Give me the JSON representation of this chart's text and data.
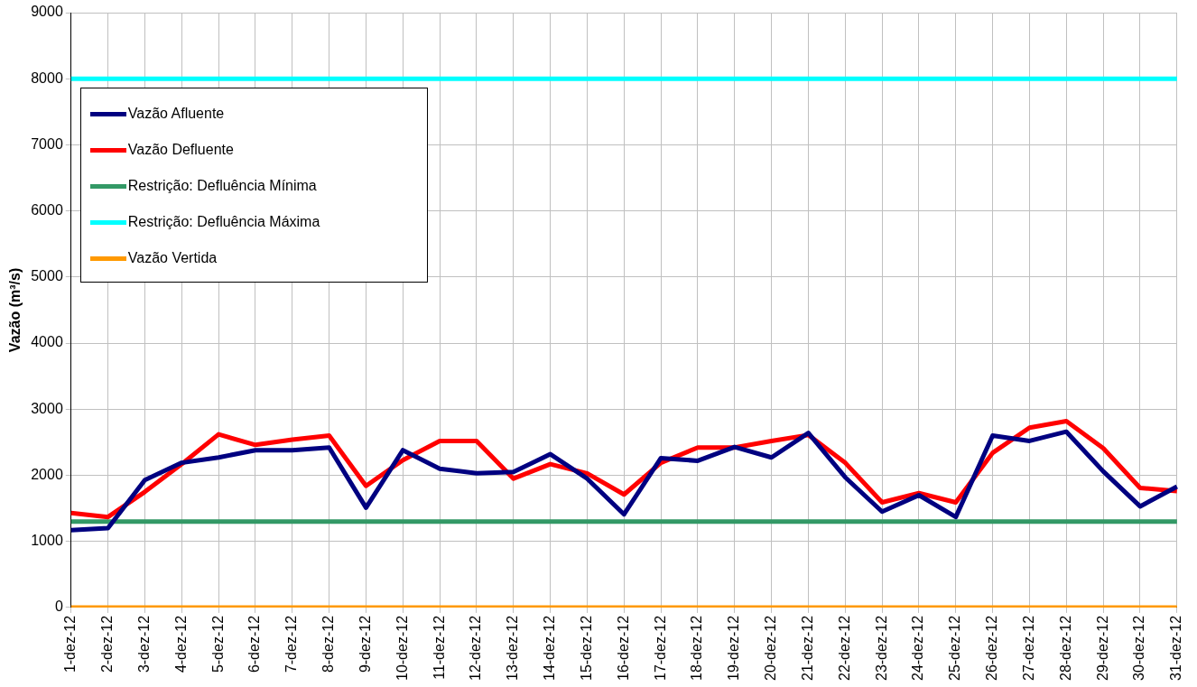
{
  "chart_data": {
    "type": "line",
    "ylabel": "Vazão (m³/s)",
    "categories": [
      "1-dez-12",
      "2-dez-12",
      "3-dez-12",
      "4-dez-12",
      "5-dez-12",
      "6-dez-12",
      "7-dez-12",
      "8-dez-12",
      "9-dez-12",
      "10-dez-12",
      "11-dez-12",
      "12-dez-12",
      "13-dez-12",
      "14-dez-12",
      "15-dez-12",
      "16-dez-12",
      "17-dez-12",
      "18-dez-12",
      "19-dez-12",
      "20-dez-12",
      "21-dez-12",
      "22-dez-12",
      "23-dez-12",
      "24-dez-12",
      "25-dez-12",
      "26-dez-12",
      "27-dez-12",
      "28-dez-12",
      "29-dez-12",
      "30-dez-12",
      "31-dez-12"
    ],
    "series": [
      {
        "name": "Vazão Afluente",
        "color": "#000080",
        "values": [
          1170,
          1200,
          1930,
          2190,
          2270,
          2380,
          2380,
          2420,
          1510,
          2380,
          2100,
          2030,
          2050,
          2320,
          1950,
          1410,
          2260,
          2220,
          2430,
          2270,
          2640,
          1970,
          1450,
          1700,
          1370,
          2600,
          2520,
          2660,
          2060,
          1530,
          1830
        ]
      },
      {
        "name": "Vazão Defluente",
        "color": "#ff0000",
        "values": [
          1430,
          1370,
          1750,
          2170,
          2620,
          2460,
          2540,
          2600,
          1840,
          2230,
          2520,
          2520,
          1950,
          2170,
          2030,
          1710,
          2190,
          2420,
          2420,
          2520,
          2610,
          2190,
          1590,
          1730,
          1590,
          2340,
          2720,
          2820,
          2410,
          1810,
          1760
        ]
      },
      {
        "name": "Restrição: Defluência Mínima",
        "color": "#339966",
        "values": [
          1300,
          1300,
          1300,
          1300,
          1300,
          1300,
          1300,
          1300,
          1300,
          1300,
          1300,
          1300,
          1300,
          1300,
          1300,
          1300,
          1300,
          1300,
          1300,
          1300,
          1300,
          1300,
          1300,
          1300,
          1300,
          1300,
          1300,
          1300,
          1300,
          1300,
          1300
        ]
      },
      {
        "name": "Restrição: Defluência Máxima",
        "color": "#00ffff",
        "values": [
          8000,
          8000,
          8000,
          8000,
          8000,
          8000,
          8000,
          8000,
          8000,
          8000,
          8000,
          8000,
          8000,
          8000,
          8000,
          8000,
          8000,
          8000,
          8000,
          8000,
          8000,
          8000,
          8000,
          8000,
          8000,
          8000,
          8000,
          8000,
          8000,
          8000,
          8000
        ]
      },
      {
        "name": "Vazão Vertida",
        "color": "#ff9900",
        "values": [
          0,
          0,
          0,
          0,
          0,
          0,
          0,
          0,
          0,
          0,
          0,
          0,
          0,
          0,
          0,
          0,
          0,
          0,
          0,
          0,
          0,
          0,
          0,
          0,
          0,
          0,
          0,
          0,
          0,
          0,
          0
        ]
      }
    ],
    "ylim": [
      0,
      9000
    ],
    "yticks": [
      0,
      1000,
      2000,
      3000,
      4000,
      5000,
      6000,
      7000,
      8000,
      9000
    ],
    "grid": true,
    "legend": "top left",
    "marker": "none",
    "line_style": "solid"
  }
}
